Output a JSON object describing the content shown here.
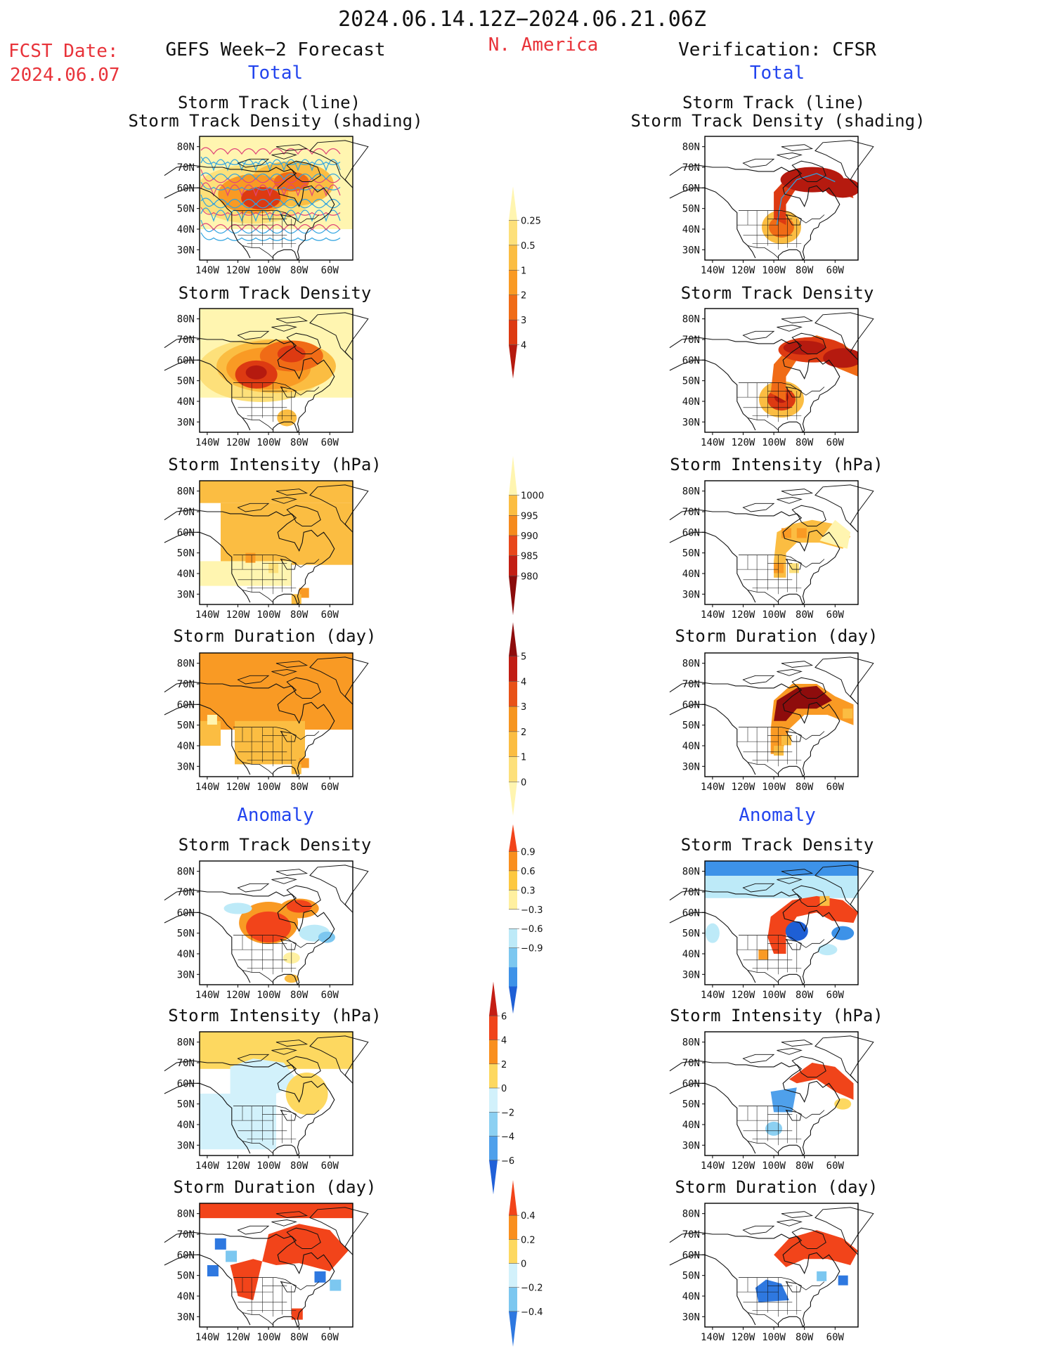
{
  "header": {
    "period": "2024.06.14.12Z−2024.06.21.06Z",
    "fcst_label": "FCST Date:",
    "fcst_date": "2024.06.07",
    "left_title": "GEFS Week−2 Forecast",
    "region": "N. America",
    "right_title": "Verification: CFSR"
  },
  "sections": {
    "total": "Total",
    "anomaly": "Anomaly"
  },
  "panel_titles": {
    "track_line": "Storm Track (line)",
    "track_shading": "Storm Track Density (shading)",
    "track_density": "Storm Track Density",
    "intensity": "Storm Intensity (hPa)",
    "duration": "Storm Duration (day)"
  },
  "axes": {
    "lon_ticks": [
      "140W",
      "120W",
      "100W",
      "80W",
      "60W"
    ],
    "lat_ticks": [
      "80N",
      "70N",
      "60N",
      "50N",
      "40N",
      "30N"
    ]
  },
  "colorbars": {
    "density": {
      "labels": [
        "0.25",
        "0.5",
        "1",
        "2",
        "3",
        "4"
      ],
      "colors": [
        "#fff5b0",
        "#fde07a",
        "#fbbd42",
        "#f99a24",
        "#f06b16",
        "#dd3a12",
        "#b51a0f"
      ]
    },
    "intensity": {
      "labels": [
        "1000",
        "995",
        "990",
        "985",
        "980"
      ],
      "colors": [
        "#fff5b0",
        "#fbbd42",
        "#f58a1d",
        "#e8471b",
        "#c21e14",
        "#8a0b0b"
      ]
    },
    "duration": {
      "labels": [
        "5",
        "4",
        "3",
        "2",
        "1",
        "0"
      ],
      "colors": [
        "#8e0c0c",
        "#c11d14",
        "#e85218",
        "#f6951f",
        "#fbbd42",
        "#fde07a",
        "#fff5b0"
      ]
    },
    "density_anom": {
      "labels": [
        "0.9",
        "0.6",
        "0.3",
        "−0.3",
        "−0.6",
        "−0.9"
      ],
      "colors": [
        "#f2441a",
        "#f98f1e",
        "#fdc840",
        "#fff0a0",
        "#ffffff",
        "#bdeaf8",
        "#7cc7f0",
        "#3d92e8",
        "#1e5fd5"
      ]
    },
    "intensity_anom": {
      "labels": [
        "6",
        "4",
        "2",
        "0",
        "−2",
        "−4",
        "−6"
      ],
      "colors": [
        "#c41e14",
        "#f0441a",
        "#f98f1e",
        "#fdd860",
        "#d2f1fb",
        "#8cd0f2",
        "#4fa0eb",
        "#2060d8"
      ]
    },
    "duration_anom": {
      "labels": [
        "0.4",
        "0.2",
        "0",
        "−0.2",
        "−0.4"
      ],
      "colors": [
        "#f2441a",
        "#f98f1e",
        "#fdd860",
        "#d2f1fb",
        "#7cc7f0",
        "#2e78e0"
      ]
    }
  },
  "chart_data": {
    "type": "heatmap",
    "title": "2024.06.14.12Z−2024.06.21.06Z",
    "region": "N. America",
    "xlabel": "",
    "ylabel": "",
    "xlim": [
      -145,
      -45
    ],
    "ylim": [
      25,
      85
    ],
    "x_ticks": [
      "140W",
      "120W",
      "100W",
      "80W",
      "60W"
    ],
    "y_ticks": [
      "80N",
      "70N",
      "60N",
      "50N",
      "40N",
      "30N"
    ],
    "panels": [
      {
        "column": "GEFS Week−2 Forecast",
        "section": "Total",
        "field": "Storm Track (line) / Storm Track Density (shading)",
        "centers": [
          {
            "lon": -110,
            "lat": 58,
            "value": 3
          },
          {
            "lon": -85,
            "lat": 62,
            "value": 2
          }
        ],
        "track_lines": 14
      },
      {
        "column": "Verification: CFSR",
        "section": "Total",
        "field": "Storm Track (line) / Storm Track Density (shading)",
        "centers": [
          {
            "lon": -95,
            "lat": 40,
            "value": 3
          },
          {
            "lon": -70,
            "lat": 65,
            "value": 4
          },
          {
            "lon": -50,
            "lat": 60,
            "value": 4
          }
        ],
        "track_lines": 3
      },
      {
        "column": "GEFS Week−2 Forecast",
        "section": "Total",
        "field": "Storm Track Density",
        "centers": [
          {
            "lon": -108,
            "lat": 56,
            "value": 3
          },
          {
            "lon": -82,
            "lat": 63,
            "value": 2
          }
        ]
      },
      {
        "column": "Verification: CFSR",
        "section": "Total",
        "field": "Storm Track Density",
        "centers": [
          {
            "lon": -95,
            "lat": 40,
            "value": 3
          },
          {
            "lon": -70,
            "lat": 65,
            "value": 4
          },
          {
            "lon": -50,
            "lat": 60,
            "value": 4
          }
        ]
      },
      {
        "column": "GEFS Week−2 Forecast",
        "section": "Total",
        "field": "Storm Intensity (hPa)",
        "typical": 990
      },
      {
        "column": "Verification: CFSR",
        "section": "Total",
        "field": "Storm Intensity (hPa)",
        "typical": 990
      },
      {
        "column": "GEFS Week−2 Forecast",
        "section": "Total",
        "field": "Storm Duration (day)",
        "typical": 3
      },
      {
        "column": "Verification: CFSR",
        "section": "Total",
        "field": "Storm Duration (day)",
        "typical": 4
      },
      {
        "column": "GEFS Week−2 Forecast",
        "section": "Anomaly",
        "field": "Storm Track Density",
        "range": [
          -0.6,
          0.9
        ]
      },
      {
        "column": "Verification: CFSR",
        "section": "Anomaly",
        "field": "Storm Track Density",
        "range": [
          -0.9,
          0.9
        ]
      },
      {
        "column": "GEFS Week−2 Forecast",
        "section": "Anomaly",
        "field": "Storm Intensity (hPa)",
        "range": [
          -2,
          4
        ]
      },
      {
        "column": "Verification: CFSR",
        "section": "Anomaly",
        "field": "Storm Intensity (hPa)",
        "range": [
          -6,
          6
        ]
      },
      {
        "column": "GEFS Week−2 Forecast",
        "section": "Anomaly",
        "field": "Storm Duration (day)",
        "range": [
          -0.4,
          0.4
        ]
      },
      {
        "column": "Verification: CFSR",
        "section": "Anomaly",
        "field": "Storm Duration (day)",
        "range": [
          -0.4,
          0.4
        ]
      }
    ]
  }
}
